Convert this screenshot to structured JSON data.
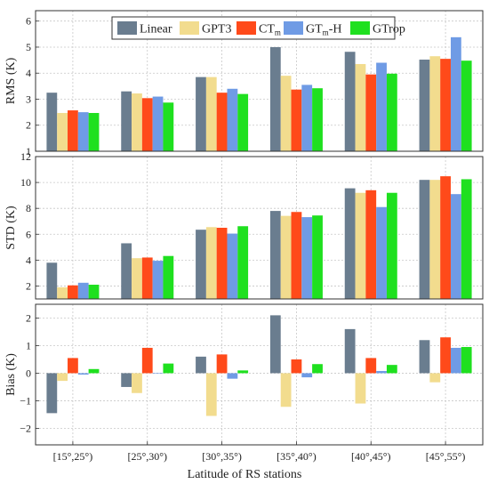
{
  "chart_data": {
    "type": "bar",
    "xlabel": "Latitude of RS stations",
    "categories": [
      "[15°,25°)",
      "[25°,30°)",
      "[30°,35°)",
      "[35°,40°)",
      "[40°,45°)",
      "[45°,55°)"
    ],
    "legend": {
      "placement": "top-center",
      "entries": [
        {
          "base": "Linear",
          "sub": "",
          "suffix": ""
        },
        {
          "base": "GPT3",
          "sub": "",
          "suffix": ""
        },
        {
          "base": "CT",
          "sub": "m",
          "suffix": ""
        },
        {
          "base": "GT",
          "sub": "m",
          "suffix": "-H"
        },
        {
          "base": "GTrop",
          "sub": "",
          "suffix": ""
        }
      ]
    },
    "colors": [
      "#6a7d8f",
      "#f2dc8e",
      "#ff4a1a",
      "#6f9be5",
      "#1fe01f"
    ],
    "grid": true,
    "panels": [
      {
        "ylabel": "RMS (K)",
        "ylim": [
          1,
          6.4
        ],
        "yticks": [
          1,
          2,
          3,
          4,
          5,
          6
        ],
        "series": [
          {
            "values": [
              3.25,
              3.3,
              3.85,
              5.0,
              4.82,
              4.52
            ]
          },
          {
            "values": [
              2.47,
              3.22,
              3.85,
              3.9,
              4.35,
              4.65
            ]
          },
          {
            "values": [
              2.57,
              3.04,
              3.25,
              3.37,
              3.95,
              4.55
            ]
          },
          {
            "values": [
              2.5,
              3.1,
              3.4,
              3.55,
              4.4,
              5.38
            ]
          },
          {
            "values": [
              2.47,
              2.87,
              3.2,
              3.42,
              3.98,
              4.48
            ]
          }
        ]
      },
      {
        "ylabel": "STD (K)",
        "ylim": [
          1,
          12
        ],
        "yticks": [
          2,
          4,
          6,
          8,
          10,
          12
        ],
        "series": [
          {
            "values": [
              3.8,
              5.3,
              6.35,
              7.8,
              9.55,
              10.2
            ]
          },
          {
            "values": [
              1.9,
              4.15,
              6.55,
              7.42,
              9.2,
              10.2
            ]
          },
          {
            "values": [
              2.05,
              4.2,
              6.5,
              7.72,
              9.4,
              10.48
            ]
          },
          {
            "values": [
              2.25,
              3.95,
              6.05,
              7.32,
              8.1,
              9.1
            ]
          },
          {
            "values": [
              2.1,
              4.32,
              6.62,
              7.45,
              9.2,
              10.25
            ]
          }
        ]
      },
      {
        "ylabel": "Bias (K)",
        "ylim": [
          -2.6,
          2.5
        ],
        "yticks": [
          -2,
          -1,
          0,
          1,
          2
        ],
        "series": [
          {
            "values": [
              -1.45,
              -0.5,
              0.6,
              2.1,
              1.6,
              1.2
            ]
          },
          {
            "values": [
              -0.28,
              -0.72,
              -1.55,
              -1.22,
              -1.1,
              -0.33
            ]
          },
          {
            "values": [
              0.55,
              0.92,
              0.68,
              0.5,
              0.55,
              1.3
            ]
          },
          {
            "values": [
              -0.05,
              0.0,
              -0.2,
              -0.15,
              0.08,
              0.92
            ]
          },
          {
            "values": [
              0.15,
              0.35,
              0.1,
              0.33,
              0.3,
              0.95
            ]
          }
        ]
      }
    ]
  }
}
